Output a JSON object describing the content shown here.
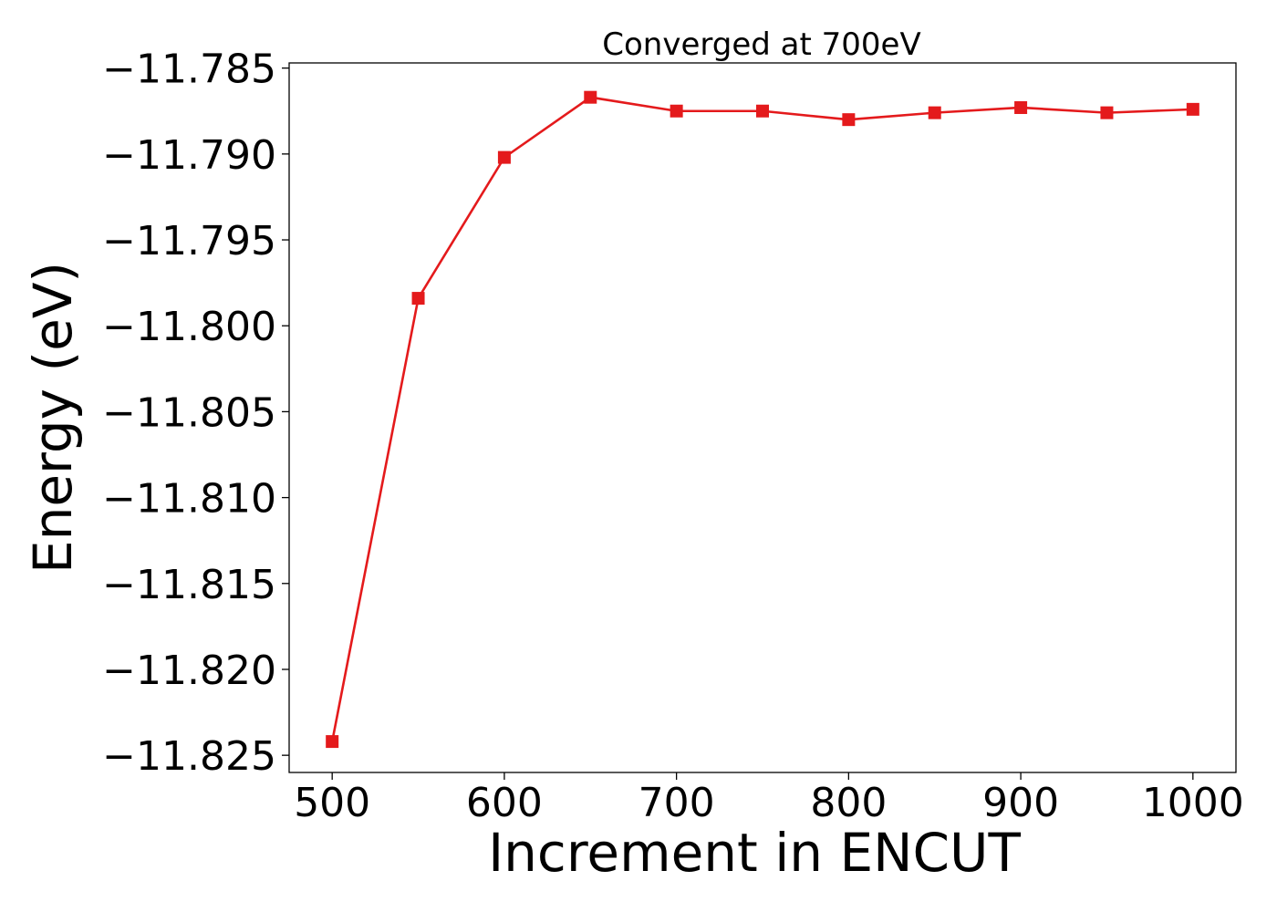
{
  "chart_data": {
    "type": "line",
    "title": "Converged at 700eV",
    "xlabel": "Increment in ENCUT",
    "ylabel": "Energy (eV)",
    "xlim": [
      475,
      1025
    ],
    "ylim": [
      -11.826,
      -11.7847
    ],
    "x_ticks": [
      500,
      600,
      700,
      800,
      900,
      1000
    ],
    "y_ticks": [
      -11.825,
      -11.82,
      -11.815,
      -11.81,
      -11.805,
      -11.8,
      -11.795,
      -11.79,
      -11.785
    ],
    "x_tick_labels": [
      "500",
      "600",
      "700",
      "800",
      "900",
      "1000"
    ],
    "y_tick_labels": [
      "−11.825",
      "−11.820",
      "−11.815",
      "−11.810",
      "−11.805",
      "−11.800",
      "−11.795",
      "−11.790",
      "−11.785"
    ],
    "grid": false,
    "series": [
      {
        "color": "#e41a1c",
        "marker": "square",
        "x": [
          500,
          550,
          600,
          650,
          700,
          750,
          800,
          850,
          900,
          950,
          1000
        ],
        "y": [
          -11.8242,
          -11.7984,
          -11.7902,
          -11.7867,
          -11.7875,
          -11.7875,
          -11.788,
          -11.7876,
          -11.7873,
          -11.7876,
          -11.7874
        ]
      }
    ]
  }
}
